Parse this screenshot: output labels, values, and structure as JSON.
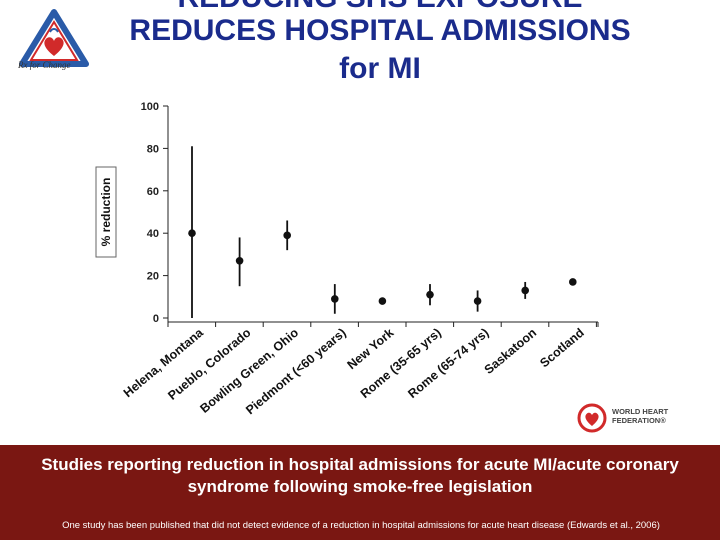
{
  "slide": {
    "title_line_1": "REDUCING SHS EXPOSURE",
    "title_line_2": "REDUCES HOSPITAL ADMISSIONS",
    "title_line_3": "for MI",
    "logo_tagline": "Rx for Change",
    "whf_logo_line_1": "WORLD HEART",
    "whf_logo_line_2": "FEDERATION®",
    "banner_text": "Studies reporting reduction in hospital admissions for acute MI/acute coronary syndrome following smoke-free legislation",
    "footnote": "One study has been published that did not detect evidence of a reduction in hospital admissions for acute heart disease (Edwards et al., 2006)",
    "colors": {
      "title": "#1a2b8c",
      "banner_bg": "#7a1712",
      "banner_text": "#ffffff",
      "logo_red": "#d12a2a",
      "logo_blue": "#2a5ba8"
    }
  },
  "chart_data": {
    "type": "scatter",
    "ylabel": "% reduction",
    "xlabel": "",
    "ylim": [
      0,
      100
    ],
    "y_ticks": [
      "0",
      "20",
      "40",
      "60",
      "80",
      "100"
    ],
    "categories": [
      "Helena, Montana",
      "Pueblo, Colorado",
      "Bowling Green, Ohio",
      "Piedmont (<60 years)",
      "New York",
      "Rome (35-65 yrs)",
      "Rome (65-74 yrs)",
      "Saskatoon",
      "Scotland"
    ],
    "series": [
      {
        "values": [
          40,
          27,
          39,
          9,
          8,
          11,
          8,
          13,
          17
        ],
        "lower": [
          0,
          15,
          32,
          2,
          null,
          6,
          3,
          9,
          null
        ],
        "upper": [
          81,
          38,
          46,
          16,
          null,
          16,
          13,
          17,
          null
        ]
      }
    ],
    "grid": false,
    "legend": "none"
  }
}
